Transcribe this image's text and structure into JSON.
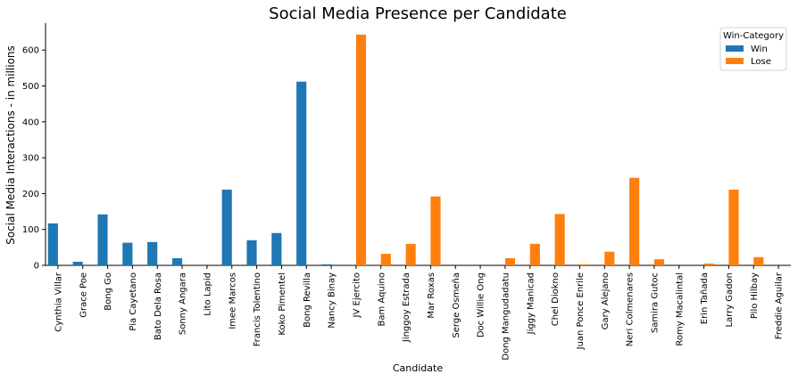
{
  "chart_data": {
    "type": "bar",
    "title": "Social Media Presence per Candidate",
    "xlabel": "Candidate",
    "ylabel": "Social Media Interactions - in millions",
    "ylim": [
      0,
      675
    ],
    "yticks": [
      0,
      100,
      200,
      300,
      400,
      500,
      600
    ],
    "grid": false,
    "legend": {
      "title": "Win-Category",
      "placement": "top-right"
    },
    "categories": [
      "Cynthia Villar",
      "Grace Poe",
      "Bong Go",
      "Pia Cayetano",
      "Bato Dela Rosa",
      "Sonny Angara",
      "Lito Lapid",
      "Imee Marcos",
      "Francis Tolentino",
      "Koko Pimentel",
      "Bong Revilla",
      "Nancy Binay",
      "JV Ejercito",
      "Bam Aquino",
      "Jinggoy Estrada",
      "Mar Roxas",
      "Serge Osmeña",
      "Doc Willie Ong",
      "Dong Mangudadatu",
      "Jiggy Manicad",
      "Chel Diokno",
      "Juan Ponce Enrile",
      "Gary Alejano",
      "Neri Colmenares",
      "Samira Gutoc",
      "Romy Macalintal",
      "Erin Tañada",
      "Larry Gadon",
      "Pilo Hilbay",
      "Freddie Aguilar"
    ],
    "series": [
      {
        "name": "Win",
        "color": "#1f77b4",
        "values": [
          117,
          10,
          142,
          63,
          65,
          20,
          0,
          211,
          70,
          90,
          512,
          3,
          null,
          null,
          null,
          null,
          null,
          null,
          null,
          null,
          null,
          null,
          null,
          null,
          null,
          null,
          null,
          null,
          null,
          null
        ]
      },
      {
        "name": "Lose",
        "color": "#ff7f0e",
        "values": [
          null,
          null,
          null,
          null,
          null,
          null,
          null,
          null,
          null,
          null,
          null,
          null,
          643,
          32,
          60,
          192,
          0,
          0,
          20,
          60,
          143,
          3,
          38,
          244,
          17,
          0,
          5,
          211,
          23,
          0
        ]
      }
    ]
  }
}
